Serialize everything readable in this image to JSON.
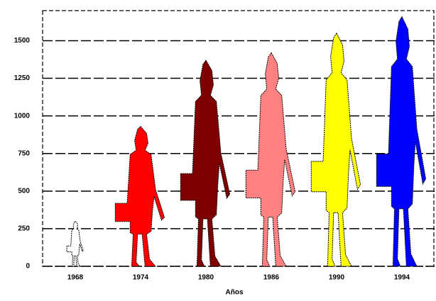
{
  "chart_data": {
    "type": "pictograph",
    "x_label": "Años",
    "categories": [
      "1968",
      "1974",
      "1980",
      "1986",
      "1990",
      "1994"
    ],
    "values": [
      300,
      930,
      1370,
      1420,
      1550,
      1660
    ],
    "colors": [
      "#ffffff",
      "#ff0000",
      "#7f0000",
      "#ff8080",
      "#ffff00",
      "#0000ff"
    ],
    "ylim": [
      0,
      1700
    ],
    "yticks": [
      0,
      250,
      500,
      750,
      1000,
      1250,
      1500
    ],
    "grid": true
  }
}
